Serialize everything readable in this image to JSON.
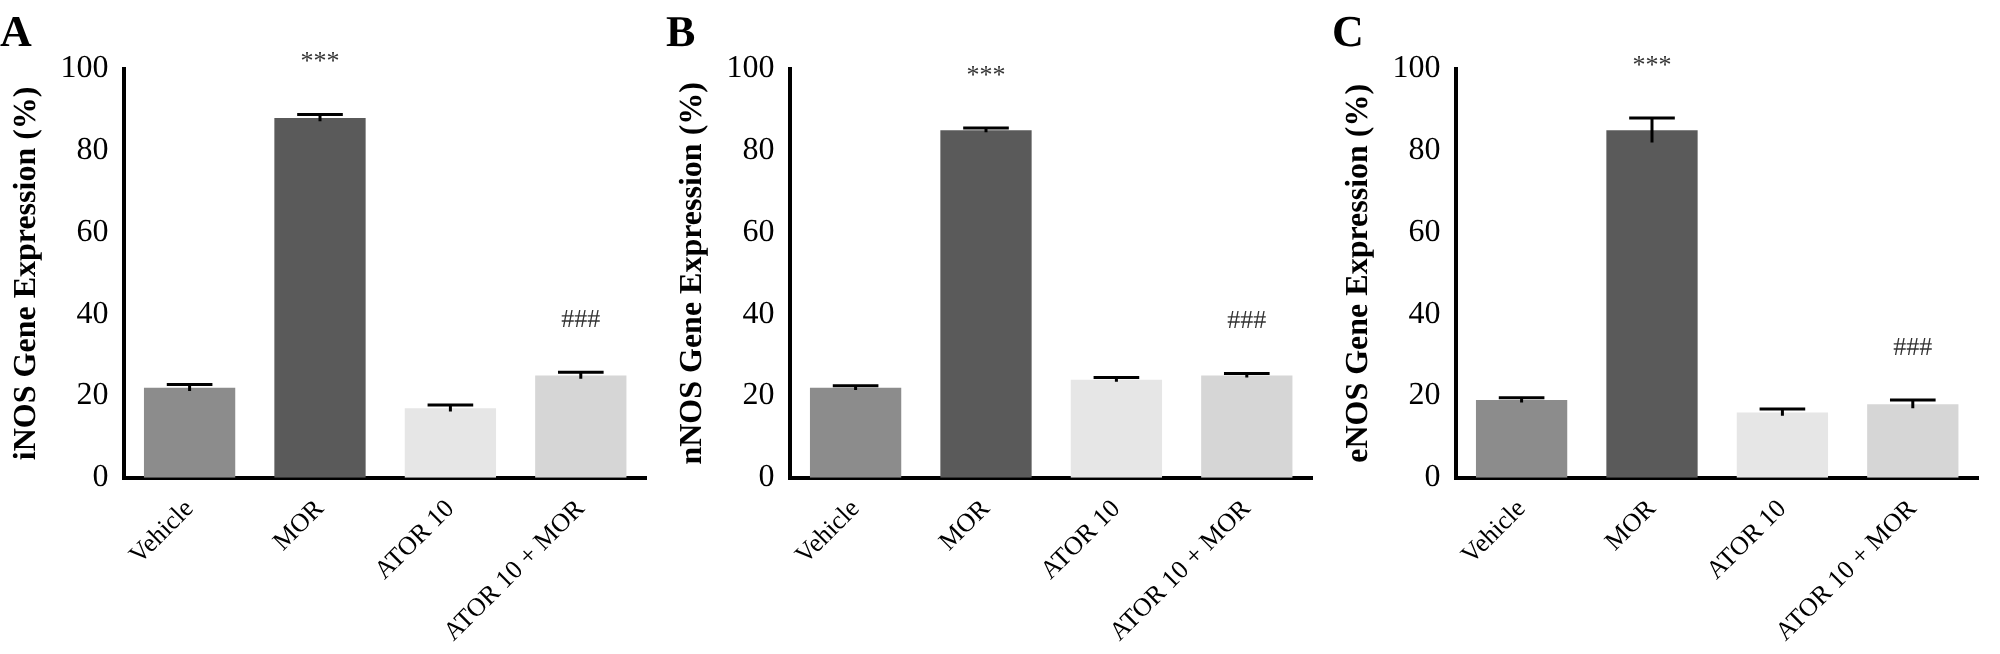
{
  "chart_data": [
    {
      "type": "bar",
      "title": "A",
      "ylabel": "iNOS Gene Expression (%)",
      "categories": [
        "Vehicle",
        "MOR",
        "ATOR 10",
        "ATOR 10 + MOR"
      ],
      "values": [
        22,
        88,
        17,
        25
      ],
      "errors": [
        0.8,
        0.8,
        0.8,
        0.8
      ],
      "colors": [
        "#8c8c8c",
        "#5a5a5a",
        "#e6e6e6",
        "#d6d6d6"
      ],
      "ylim": [
        0,
        100
      ],
      "yticks": [
        0,
        20,
        40,
        60,
        80,
        100
      ],
      "grid": false,
      "legend": false,
      "annotations": [
        {
          "text": "***",
          "x": "MOR",
          "y": 88
        },
        {
          "text": "###",
          "x": "ATOR 10 + MOR",
          "y": 25
        }
      ]
    },
    {
      "type": "bar",
      "title": "B",
      "ylabel": "nNOS Gene Expression (%)",
      "categories": [
        "Vehicle",
        "MOR",
        "ATOR 10",
        "ATOR 10 + MOR"
      ],
      "values": [
        22,
        85,
        24,
        25
      ],
      "errors": [
        0.5,
        0.5,
        0.5,
        0.5
      ],
      "colors": [
        "#8c8c8c",
        "#5a5a5a",
        "#e6e6e6",
        "#d6d6d6"
      ],
      "ylim": [
        0,
        100
      ],
      "yticks": [
        0,
        20,
        40,
        60,
        80,
        100
      ],
      "grid": false,
      "legend": false,
      "annotations": [
        {
          "text": "***",
          "x": "MOR",
          "y": 85
        },
        {
          "text": "###",
          "x": "ATOR 10 + MOR",
          "y": 25
        }
      ]
    },
    {
      "type": "bar",
      "title": "C",
      "ylabel": "eNOS Gene Expression (%)",
      "categories": [
        "Vehicle",
        "MOR",
        "ATOR 10",
        "ATOR 10 + MOR"
      ],
      "values": [
        19,
        85,
        16,
        18
      ],
      "errors": [
        0.6,
        3,
        0.8,
        1
      ],
      "colors": [
        "#8c8c8c",
        "#5a5a5a",
        "#e6e6e6",
        "#d6d6d6"
      ],
      "ylim": [
        0,
        100
      ],
      "yticks": [
        0,
        20,
        40,
        60,
        80,
        100
      ],
      "grid": false,
      "legend": false,
      "annotations": [
        {
          "text": "***",
          "x": "MOR",
          "y": 85
        },
        {
          "text": "###",
          "x": "ATOR 10 + MOR",
          "y": 18
        }
      ]
    }
  ]
}
